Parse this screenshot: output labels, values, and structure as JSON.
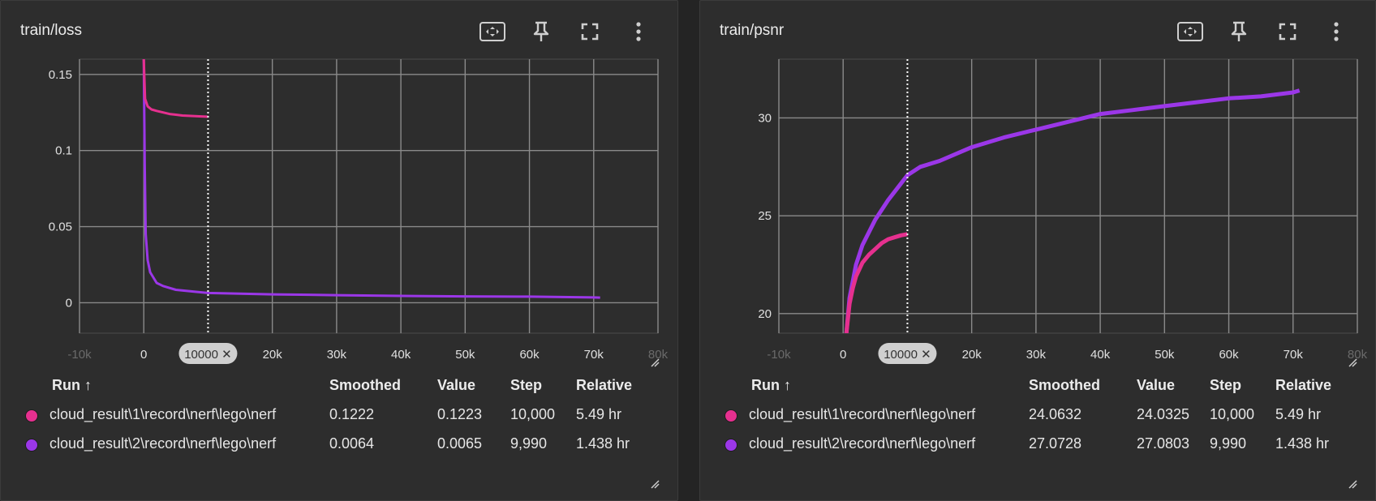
{
  "colors": {
    "run1": "#e6308f",
    "run2": "#9b37e8"
  },
  "icons": [
    "fit-domain-icon",
    "pin-icon",
    "fullscreen-icon",
    "more-vert-icon"
  ],
  "legend_headers": {
    "run": "Run ↑",
    "smoothed": "Smoothed",
    "value": "Value",
    "step": "Step",
    "relative": "Relative"
  },
  "panels": [
    {
      "title": "train/loss",
      "rows": [
        {
          "run": "cloud_result\\1\\record\\nerf\\lego\\nerf",
          "smoothed": "0.1222",
          "value": "0.1223",
          "step": "10,000",
          "relative": "5.49 hr"
        },
        {
          "run": "cloud_result\\2\\record\\nerf\\lego\\nerf",
          "smoothed": "0.0064",
          "value": "0.0065",
          "step": "9,990",
          "relative": "1.438 hr"
        }
      ]
    },
    {
      "title": "train/psnr",
      "rows": [
        {
          "run": "cloud_result\\1\\record\\nerf\\lego\\nerf",
          "smoothed": "24.0632",
          "value": "24.0325",
          "step": "10,000",
          "relative": "5.49 hr"
        },
        {
          "run": "cloud_result\\2\\record\\nerf\\lego\\nerf",
          "smoothed": "27.0728",
          "value": "27.0803",
          "step": "9,990",
          "relative": "1.438 hr"
        }
      ]
    }
  ],
  "chart_data": [
    {
      "type": "line",
      "title": "train/loss",
      "xlim": [
        -10000,
        80000
      ],
      "ylim": [
        -0.02,
        0.16
      ],
      "x_ticks": [
        "-10k",
        "0",
        "10000 ✕",
        "20k",
        "30k",
        "40k",
        "50k",
        "60k",
        "70k",
        "80k"
      ],
      "x_tick_values": [
        -10000,
        0,
        10000,
        20000,
        30000,
        40000,
        50000,
        60000,
        70000,
        80000
      ],
      "y_ticks": [
        "0",
        "0.05",
        "0.1",
        "0.15"
      ],
      "y_tick_values": [
        0,
        0.05,
        0.1,
        0.15
      ],
      "cursor_x": 10000,
      "grid": true,
      "series": [
        {
          "color": "#e6308f",
          "x": [
            0,
            200,
            600,
            1200,
            2000,
            3000,
            4000,
            5000,
            6000,
            7000,
            8000,
            9000,
            10000
          ],
          "y": [
            0.16,
            0.134,
            0.129,
            0.127,
            0.126,
            0.125,
            0.124,
            0.1235,
            0.123,
            0.1228,
            0.1226,
            0.1224,
            0.1222
          ]
        },
        {
          "color": "#9b37e8",
          "x": [
            0,
            150,
            300,
            600,
            1000,
            2000,
            3000,
            5000,
            8000,
            10000,
            15000,
            20000,
            30000,
            40000,
            50000,
            60000,
            70000,
            71000
          ],
          "y": [
            0.16,
            0.09,
            0.045,
            0.028,
            0.02,
            0.013,
            0.011,
            0.0085,
            0.0072,
            0.0064,
            0.006,
            0.0055,
            0.005,
            0.0045,
            0.0042,
            0.004,
            0.0035,
            0.0034
          ]
        }
      ]
    },
    {
      "type": "line",
      "title": "train/psnr",
      "xlim": [
        -10000,
        80000
      ],
      "ylim": [
        19,
        33
      ],
      "x_ticks": [
        "-10k",
        "0",
        "10000 ✕",
        "20k",
        "30k",
        "40k",
        "50k",
        "60k",
        "70k",
        "80k"
      ],
      "x_tick_values": [
        -10000,
        0,
        10000,
        20000,
        30000,
        40000,
        50000,
        60000,
        70000,
        80000
      ],
      "y_ticks": [
        "20",
        "25",
        "30"
      ],
      "y_tick_values": [
        20,
        25,
        30
      ],
      "cursor_x": 10000,
      "grid": true,
      "series": [
        {
          "color": "#e6308f",
          "x": [
            500,
            1000,
            1500,
            2000,
            3000,
            4000,
            5000,
            6000,
            7000,
            8000,
            9000,
            10000
          ],
          "y": [
            19,
            20.5,
            21.3,
            21.9,
            22.6,
            23.0,
            23.3,
            23.6,
            23.8,
            23.9,
            24.0,
            24.06
          ]
        },
        {
          "color": "#9b37e8",
          "x": [
            500,
            1000,
            2000,
            3000,
            5000,
            7000,
            10000,
            12000,
            15000,
            20000,
            25000,
            30000,
            35000,
            40000,
            45000,
            50000,
            55000,
            60000,
            65000,
            70000,
            71000
          ],
          "y": [
            19,
            20.8,
            22.5,
            23.5,
            24.8,
            25.8,
            27.07,
            27.5,
            27.8,
            28.5,
            29.0,
            29.4,
            29.8,
            30.2,
            30.4,
            30.6,
            30.8,
            31.0,
            31.1,
            31.3,
            31.4
          ]
        }
      ]
    }
  ]
}
